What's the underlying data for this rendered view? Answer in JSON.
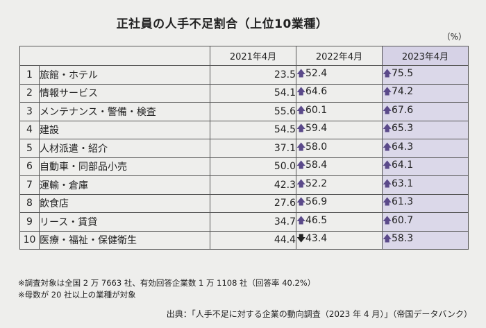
{
  "title": "正社員の人手不足割合（上位10業種）",
  "unit": "（%）",
  "headers": {
    "col2021": "2021年4月",
    "col2022": "2022年4月",
    "col2023": "2023年4月"
  },
  "arrows": {
    "up": "🡅",
    "down": "🡇"
  },
  "colors": {
    "highlight": "#dbd8e9",
    "arrow_up": "#5b4a8a"
  },
  "rows": [
    {
      "rank": "1",
      "name": "旅館・ホテル",
      "v2021": "23.5",
      "v2022": "52.4",
      "d2022": "up",
      "v2023": "75.5",
      "d2023": "up"
    },
    {
      "rank": "2",
      "name": "情報サービス",
      "v2021": "54.1",
      "v2022": "64.6",
      "d2022": "up",
      "v2023": "74.2",
      "d2023": "up"
    },
    {
      "rank": "3",
      "name": "メンテナンス・警備・検査",
      "v2021": "55.6",
      "v2022": "60.1",
      "d2022": "up",
      "v2023": "67.6",
      "d2023": "up"
    },
    {
      "rank": "4",
      "name": "建設",
      "v2021": "54.5",
      "v2022": "59.4",
      "d2022": "up",
      "v2023": "65.3",
      "d2023": "up"
    },
    {
      "rank": "5",
      "name": "人材派遣・紹介",
      "v2021": "37.1",
      "v2022": "58.0",
      "d2022": "up",
      "v2023": "64.3",
      "d2023": "up"
    },
    {
      "rank": "6",
      "name": "自動車・同部品小売",
      "v2021": "50.0",
      "v2022": "58.4",
      "d2022": "up",
      "v2023": "64.1",
      "d2023": "up"
    },
    {
      "rank": "7",
      "name": "運輸・倉庫",
      "v2021": "42.3",
      "v2022": "52.2",
      "d2022": "up",
      "v2023": "63.1",
      "d2023": "up"
    },
    {
      "rank": "8",
      "name": "飲食店",
      "v2021": "27.6",
      "v2022": "56.9",
      "d2022": "up",
      "v2023": "61.3",
      "d2023": "up"
    },
    {
      "rank": "9",
      "name": "リース・賃貸",
      "v2021": "34.7",
      "v2022": "46.5",
      "d2022": "up",
      "v2023": "60.7",
      "d2023": "up"
    },
    {
      "rank": "10",
      "name": "医療・福祉・保健衛生",
      "v2021": "44.4",
      "v2022": "43.4",
      "d2022": "down",
      "v2023": "58.3",
      "d2023": "up"
    }
  ],
  "notes": [
    "※調査対象は全国 2 万 7663 社、有効回答企業数 1 万 1108 社（回答率 40.2%）",
    "※母数が 20 社以上の業種が対象"
  ],
  "source": "出典：「人手不足に対する企業の動向調査（2023 年 4 月）」（帝国データバンク）"
}
